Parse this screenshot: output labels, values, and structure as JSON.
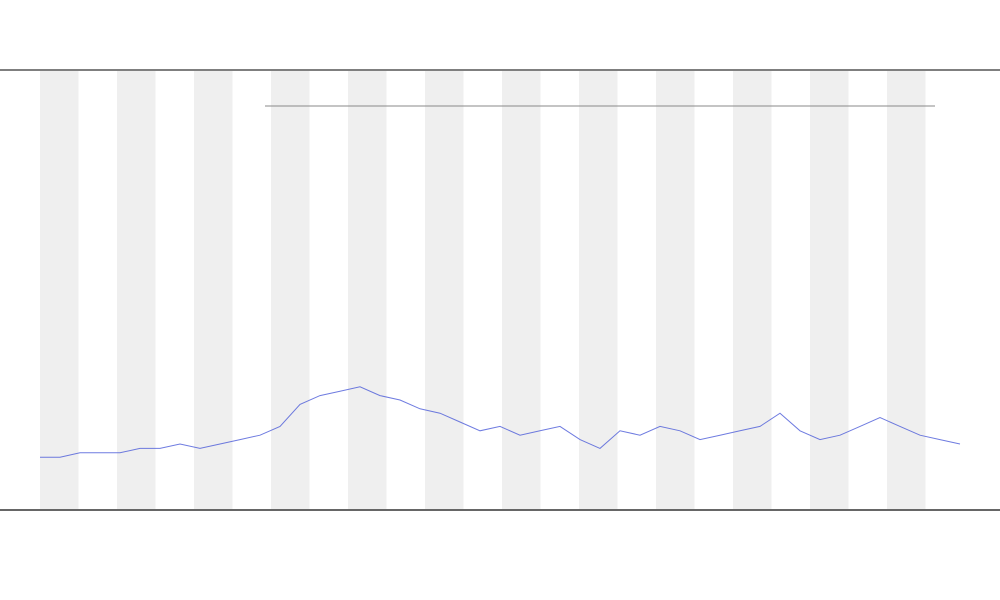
{
  "chart_data": {
    "type": "line",
    "x": [
      0,
      1,
      2,
      3,
      4,
      5,
      6,
      7,
      8,
      9,
      10,
      11,
      12,
      13,
      14,
      15,
      16,
      17,
      18,
      19,
      20,
      21,
      22,
      23,
      24,
      25,
      26,
      27,
      28,
      29,
      30,
      31,
      32,
      33,
      34,
      35,
      36,
      37,
      38,
      39,
      40,
      41,
      42,
      43,
      44,
      45,
      46
    ],
    "series": [
      {
        "color": "#4a5ad8",
        "values": [
          12,
          12,
          13,
          13,
          13,
          14,
          14,
          15,
          14,
          15,
          16,
          17,
          19,
          24,
          26,
          27,
          28,
          26,
          25,
          23,
          22,
          20,
          18,
          19,
          17,
          18,
          19,
          16,
          14,
          18,
          17,
          19,
          18,
          16,
          17,
          18,
          19,
          22,
          18,
          16,
          17,
          19,
          21,
          19,
          17,
          16,
          15
        ]
      }
    ],
    "xlim": [
      0,
      46
    ],
    "ylim": [
      0,
      100
    ]
  }
}
